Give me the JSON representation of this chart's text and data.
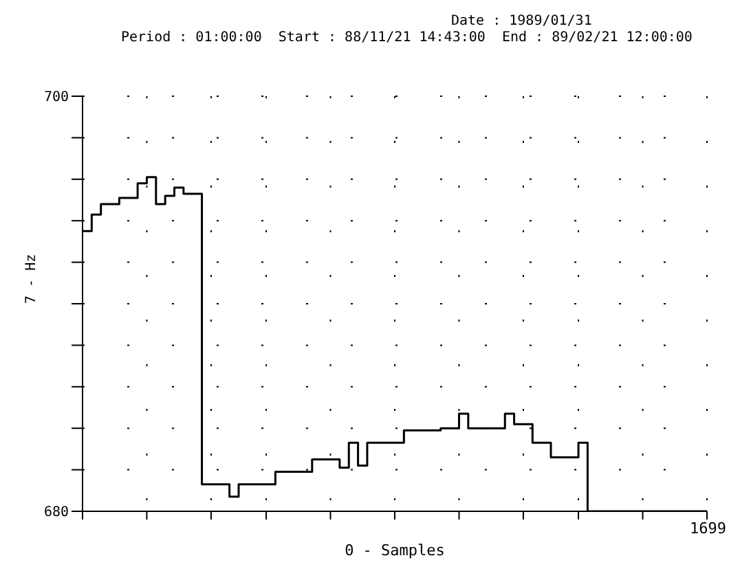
{
  "chart_data": {
    "type": "step",
    "title": "Date : 1989/01/31",
    "subtitle": "Period : 01:00:00  Start : 88/11/21 14:43:00  End : 89/02/21 12:00:00",
    "xlabel": "0 - Samples",
    "ylabel": "7 - Hz",
    "annotations": [
      "1699"
    ],
    "categories": [
      null,
      null,
      null,
      null,
      null,
      null,
      null,
      null,
      null,
      null,
      null,
      null,
      null,
      null,
      null,
      null,
      null,
      null,
      null,
      null,
      null,
      null,
      null,
      null,
      null,
      null,
      null,
      null,
      null,
      null,
      null,
      null,
      null,
      null,
      null,
      null,
      null,
      null,
      null,
      null,
      null,
      null,
      null,
      null,
      null,
      null,
      null,
      null,
      null,
      null,
      null,
      null,
      null,
      null,
      null,
      null,
      null,
      null,
      null,
      null,
      null,
      null,
      null,
      null,
      null,
      null,
      null,
      null,
      null
    ],
    "series": [
      {
        "color": "#000000",
        "values": [
          693.5,
          694.3,
          694.8,
          694.8,
          695.1,
          695.1,
          695.8,
          696.1,
          694.8,
          695.2,
          695.6,
          695.3,
          695.3,
          681.3,
          681.3,
          681.3,
          680.7,
          681.3,
          681.3,
          681.3,
          681.3,
          681.9,
          681.9,
          681.9,
          681.9,
          682.5,
          682.5,
          682.5,
          682.1,
          683.3,
          682.2,
          683.3,
          683.3,
          683.3,
          683.3,
          683.9,
          683.9,
          683.9,
          683.9,
          684.0,
          684.0,
          684.7,
          684.0,
          684.0,
          684.0,
          684.0,
          684.7,
          684.2,
          684.2,
          683.3,
          683.3,
          682.6,
          682.6,
          682.6,
          683.3,
          680.0,
          680.0,
          680.0,
          680.0,
          680.0,
          680.0,
          680.0,
          680.0,
          680.0,
          680.0,
          680.0,
          680.0,
          680.0,
          680.0
        ]
      }
    ],
    "ylim": [
      680,
      700
    ],
    "yticks": [
      680,
      {
        "value": 682,
        "label": null
      },
      {
        "value": 684,
        "label": null
      },
      {
        "value": 686,
        "label": null
      },
      {
        "value": 688,
        "label": null
      },
      {
        "value": 690,
        "label": null
      },
      {
        "value": 692,
        "label": null
      },
      {
        "value": 694,
        "label": null
      },
      {
        "value": 696,
        "label": null
      },
      {
        "value": 698,
        "label": null
      },
      700
    ],
    "grid": true
  }
}
